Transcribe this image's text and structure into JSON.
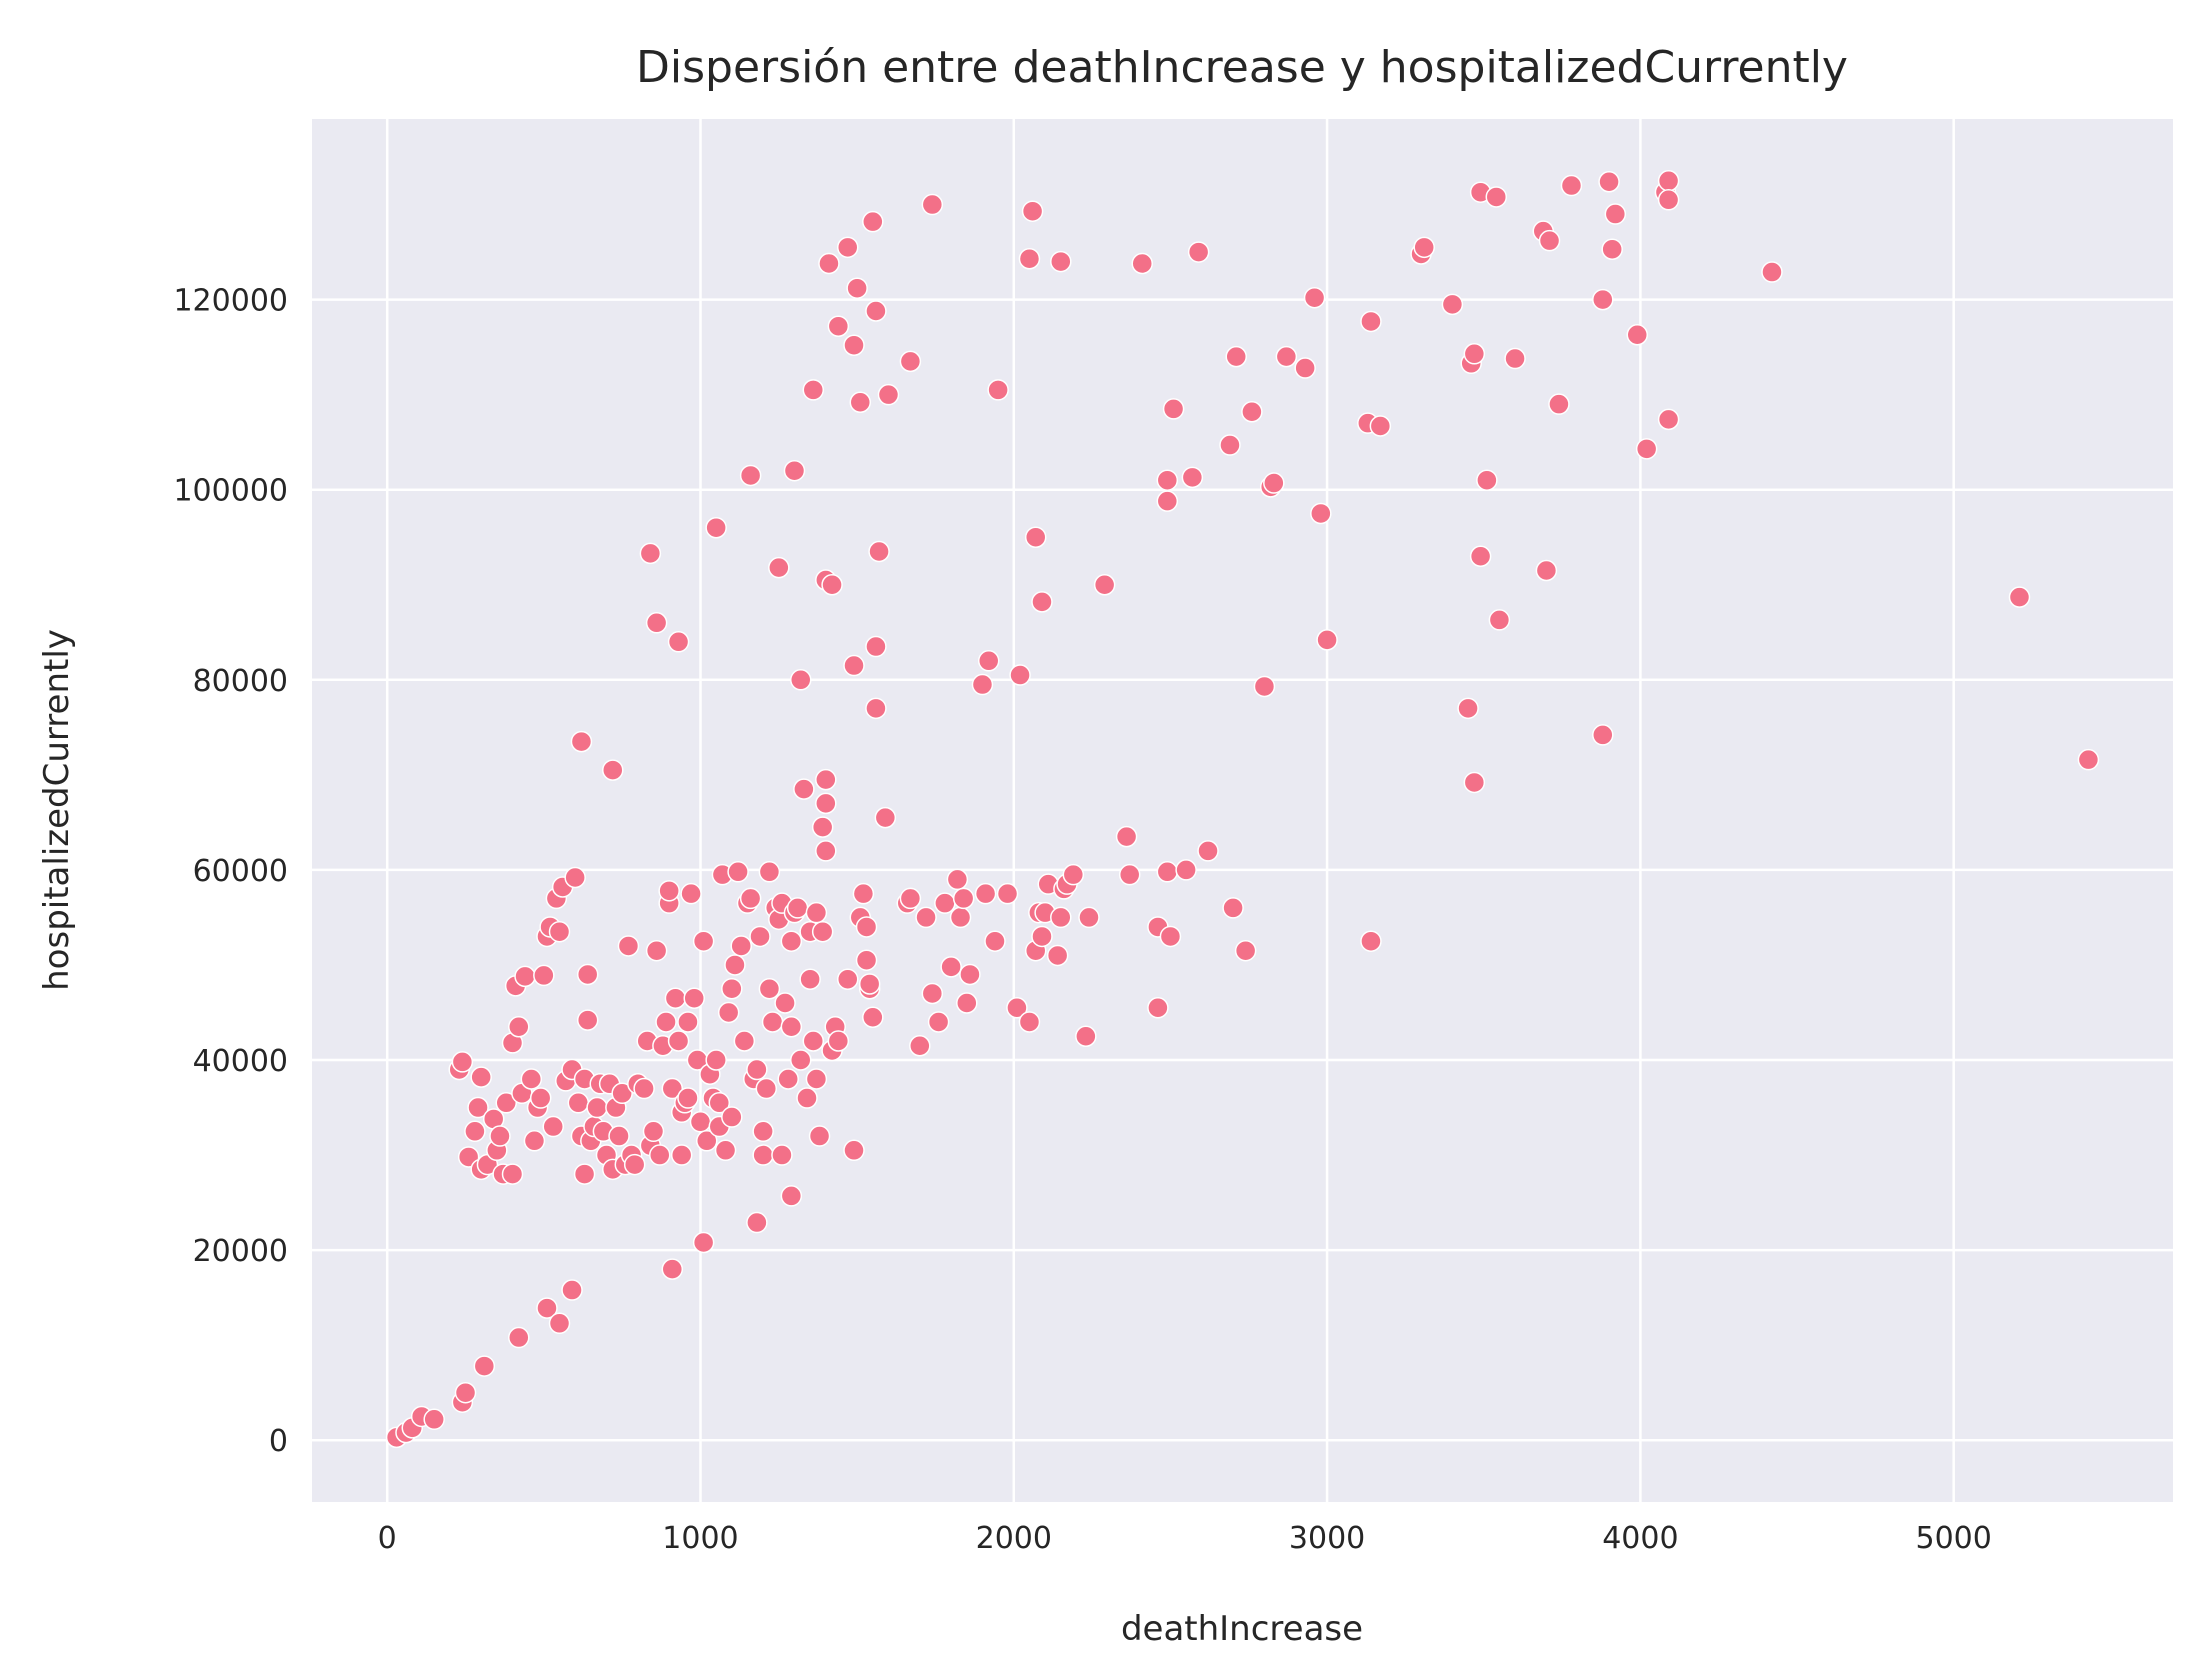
{
  "chart_data": {
    "type": "scatter",
    "title": "Dispersión entre deathIncrease y hospitalizedCurrently",
    "xlabel": "deathIncrease",
    "ylabel": "hospitalizedCurrently",
    "xlim": [
      -240,
      5700
    ],
    "ylim": [
      -6500,
      139000
    ],
    "xticks": [
      0,
      1000,
      2000,
      3000,
      4000,
      5000
    ],
    "yticks": [
      0,
      20000,
      40000,
      60000,
      80000,
      100000,
      120000
    ],
    "grid": true,
    "background_color": "#eaeaf2",
    "point_color": "#f37088",
    "points": [
      [
        30,
        300
      ],
      [
        60,
        800
      ],
      [
        80,
        1300
      ],
      [
        110,
        2500
      ],
      [
        150,
        2200
      ],
      [
        240,
        4000
      ],
      [
        250,
        5000
      ],
      [
        310,
        7800
      ],
      [
        420,
        10800
      ],
      [
        510,
        13900
      ],
      [
        550,
        12300
      ],
      [
        590,
        15800
      ],
      [
        910,
        18000
      ],
      [
        1010,
        20800
      ],
      [
        1180,
        22900
      ],
      [
        1290,
        25700
      ],
      [
        1490,
        30500
      ],
      [
        230,
        39000
      ],
      [
        240,
        39800
      ],
      [
        260,
        29800
      ],
      [
        280,
        32500
      ],
      [
        290,
        35000
      ],
      [
        300,
        38200
      ],
      [
        300,
        28500
      ],
      [
        320,
        29000
      ],
      [
        340,
        33800
      ],
      [
        350,
        30500
      ],
      [
        360,
        32000
      ],
      [
        370,
        28000
      ],
      [
        380,
        35500
      ],
      [
        400,
        28000
      ],
      [
        400,
        41800
      ],
      [
        410,
        47800
      ],
      [
        420,
        43500
      ],
      [
        430,
        36500
      ],
      [
        440,
        48800
      ],
      [
        460,
        38000
      ],
      [
        470,
        31500
      ],
      [
        480,
        35000
      ],
      [
        490,
        36000
      ],
      [
        500,
        48900
      ],
      [
        510,
        53000
      ],
      [
        520,
        54000
      ],
      [
        530,
        33000
      ],
      [
        540,
        57000
      ],
      [
        550,
        53500
      ],
      [
        560,
        58200
      ],
      [
        570,
        37800
      ],
      [
        590,
        39000
      ],
      [
        600,
        59200
      ],
      [
        610,
        35500
      ],
      [
        620,
        32000
      ],
      [
        630,
        38000
      ],
      [
        630,
        28000
      ],
      [
        640,
        44200
      ],
      [
        640,
        49000
      ],
      [
        650,
        31500
      ],
      [
        660,
        33000
      ],
      [
        670,
        35000
      ],
      [
        680,
        37500
      ],
      [
        690,
        32500
      ],
      [
        700,
        30000
      ],
      [
        710,
        37500
      ],
      [
        720,
        28500
      ],
      [
        730,
        35000
      ],
      [
        740,
        32000
      ],
      [
        750,
        36500
      ],
      [
        760,
        29000
      ],
      [
        770,
        52000
      ],
      [
        780,
        30000
      ],
      [
        790,
        29000
      ],
      [
        800,
        37500
      ],
      [
        820,
        37000
      ],
      [
        830,
        42000
      ],
      [
        840,
        31000
      ],
      [
        850,
        32500
      ],
      [
        860,
        51500
      ],
      [
        870,
        30000
      ],
      [
        880,
        41500
      ],
      [
        890,
        44000
      ],
      [
        900,
        56500
      ],
      [
        900,
        57800
      ],
      [
        910,
        37000
      ],
      [
        920,
        46500
      ],
      [
        930,
        42000
      ],
      [
        940,
        30000
      ],
      [
        940,
        34500
      ],
      [
        950,
        35500
      ],
      [
        960,
        44000
      ],
      [
        960,
        36000
      ],
      [
        970,
        57500
      ],
      [
        980,
        46500
      ],
      [
        990,
        40000
      ],
      [
        1000,
        33500
      ],
      [
        1010,
        52500
      ],
      [
        1020,
        31500
      ],
      [
        1030,
        38500
      ],
      [
        1040,
        36000
      ],
      [
        1050,
        40000
      ],
      [
        1060,
        33000
      ],
      [
        1060,
        35500
      ],
      [
        1070,
        59500
      ],
      [
        1080,
        30500
      ],
      [
        1090,
        45000
      ],
      [
        1100,
        47500
      ],
      [
        1100,
        34000
      ],
      [
        1110,
        50000
      ],
      [
        1120,
        59800
      ],
      [
        1130,
        52000
      ],
      [
        1140,
        42000
      ],
      [
        1150,
        56500
      ],
      [
        1160,
        57000
      ],
      [
        1170,
        38000
      ],
      [
        1180,
        39000
      ],
      [
        1190,
        53000
      ],
      [
        1200,
        32500
      ],
      [
        1200,
        30000
      ],
      [
        1210,
        37000
      ],
      [
        1220,
        47500
      ],
      [
        1220,
        59800
      ],
      [
        1230,
        44000
      ],
      [
        1240,
        56000
      ],
      [
        1250,
        54800
      ],
      [
        1260,
        56500
      ],
      [
        1260,
        30000
      ],
      [
        1270,
        46000
      ],
      [
        1280,
        38000
      ],
      [
        1290,
        52500
      ],
      [
        1290,
        43500
      ],
      [
        1300,
        55500
      ],
      [
        1310,
        56000
      ],
      [
        1320,
        40000
      ],
      [
        1330,
        68500
      ],
      [
        1340,
        36000
      ],
      [
        1350,
        48500
      ],
      [
        1350,
        53500
      ],
      [
        1360,
        42000
      ],
      [
        1370,
        55500
      ],
      [
        1370,
        38000
      ],
      [
        1380,
        32000
      ],
      [
        1390,
        53500
      ],
      [
        1390,
        64500
      ],
      [
        1400,
        69500
      ],
      [
        1400,
        67000
      ],
      [
        1400,
        62000
      ],
      [
        1420,
        41000
      ],
      [
        1430,
        43500
      ],
      [
        1440,
        42000
      ],
      [
        1470,
        48500
      ],
      [
        1490,
        81500
      ],
      [
        1510,
        55000
      ],
      [
        1520,
        57500
      ],
      [
        1530,
        50500
      ],
      [
        1530,
        54000
      ],
      [
        1540,
        47500
      ],
      [
        1540,
        48000
      ],
      [
        1550,
        44500
      ],
      [
        1590,
        65500
      ],
      [
        1660,
        56500
      ],
      [
        1670,
        57000
      ],
      [
        1700,
        41500
      ],
      [
        1720,
        55000
      ],
      [
        1740,
        47000
      ],
      [
        1760,
        44000
      ],
      [
        1780,
        56500
      ],
      [
        1800,
        49800
      ],
      [
        1820,
        59000
      ],
      [
        1830,
        55000
      ],
      [
        1840,
        57000
      ],
      [
        1850,
        46000
      ],
      [
        1860,
        49000
      ],
      [
        1900,
        79500
      ],
      [
        1910,
        57500
      ],
      [
        1920,
        82000
      ],
      [
        1940,
        52500
      ],
      [
        1980,
        57500
      ],
      [
        2010,
        45500
      ],
      [
        2020,
        80500
      ],
      [
        2050,
        44000
      ],
      [
        2070,
        51500
      ],
      [
        2080,
        55500
      ],
      [
        2090,
        53000
      ],
      [
        2100,
        55500
      ],
      [
        2110,
        58500
      ],
      [
        2140,
        51000
      ],
      [
        2150,
        55000
      ],
      [
        2160,
        58000
      ],
      [
        2170,
        58500
      ],
      [
        2190,
        59500
      ],
      [
        2230,
        42500
      ],
      [
        2240,
        55000
      ],
      [
        2360,
        63500
      ],
      [
        2370,
        59500
      ],
      [
        2460,
        45500
      ],
      [
        2460,
        54000
      ],
      [
        2490,
        59800
      ],
      [
        2500,
        53000
      ],
      [
        2550,
        60000
      ],
      [
        2620,
        62000
      ],
      [
        2700,
        56000
      ],
      [
        2740,
        51500
      ],
      [
        3140,
        52500
      ],
      [
        620,
        73500
      ],
      [
        720,
        70500
      ],
      [
        840,
        93300
      ],
      [
        860,
        86000
      ],
      [
        930,
        84000
      ],
      [
        1050,
        96000
      ],
      [
        1160,
        101500
      ],
      [
        1250,
        91800
      ],
      [
        1300,
        102000
      ],
      [
        1320,
        80000
      ],
      [
        1360,
        110500
      ],
      [
        1400,
        90500
      ],
      [
        1410,
        123800
      ],
      [
        1420,
        90000
      ],
      [
        1440,
        117200
      ],
      [
        1470,
        125500
      ],
      [
        1490,
        115200
      ],
      [
        1500,
        121200
      ],
      [
        1510,
        109200
      ],
      [
        1550,
        128200
      ],
      [
        1560,
        118800
      ],
      [
        1560,
        77000
      ],
      [
        1560,
        83500
      ],
      [
        1570,
        93500
      ],
      [
        1600,
        110000
      ],
      [
        1670,
        113500
      ],
      [
        1740,
        130000
      ],
      [
        1950,
        110500
      ],
      [
        2050,
        124300
      ],
      [
        2060,
        129300
      ],
      [
        2070,
        95000
      ],
      [
        2090,
        88200
      ],
      [
        2150,
        124000
      ],
      [
        2290,
        90000
      ],
      [
        2410,
        123800
      ],
      [
        2490,
        101000
      ],
      [
        2490,
        98800
      ],
      [
        2510,
        108500
      ],
      [
        2570,
        101300
      ],
      [
        2590,
        125000
      ],
      [
        2690,
        104700
      ],
      [
        2710,
        114000
      ],
      [
        2760,
        108200
      ],
      [
        2800,
        79300
      ],
      [
        2820,
        100300
      ],
      [
        2830,
        100700
      ],
      [
        2870,
        114000
      ],
      [
        2930,
        112800
      ],
      [
        2960,
        120200
      ],
      [
        2980,
        97500
      ],
      [
        3000,
        84200
      ],
      [
        3130,
        107000
      ],
      [
        3140,
        117700
      ],
      [
        3170,
        106700
      ],
      [
        3300,
        124800
      ],
      [
        3310,
        125500
      ],
      [
        3400,
        119500
      ],
      [
        3450,
        77000
      ],
      [
        3460,
        113300
      ],
      [
        3470,
        114300
      ],
      [
        3470,
        69200
      ],
      [
        3490,
        131300
      ],
      [
        3490,
        93000
      ],
      [
        3510,
        101000
      ],
      [
        3540,
        130800
      ],
      [
        3550,
        86300
      ],
      [
        3600,
        113800
      ],
      [
        3690,
        127200
      ],
      [
        3700,
        91500
      ],
      [
        3710,
        126200
      ],
      [
        3740,
        109000
      ],
      [
        3780,
        132000
      ],
      [
        3880,
        120000
      ],
      [
        3880,
        74200
      ],
      [
        3900,
        132400
      ],
      [
        3910,
        125300
      ],
      [
        3920,
        129000
      ],
      [
        3990,
        116300
      ],
      [
        4020,
        104300
      ],
      [
        4080,
        131300
      ],
      [
        4090,
        132500
      ],
      [
        4090,
        130500
      ],
      [
        4090,
        107400
      ],
      [
        4420,
        122900
      ],
      [
        5210,
        88700
      ],
      [
        5430,
        71600
      ]
    ]
  }
}
